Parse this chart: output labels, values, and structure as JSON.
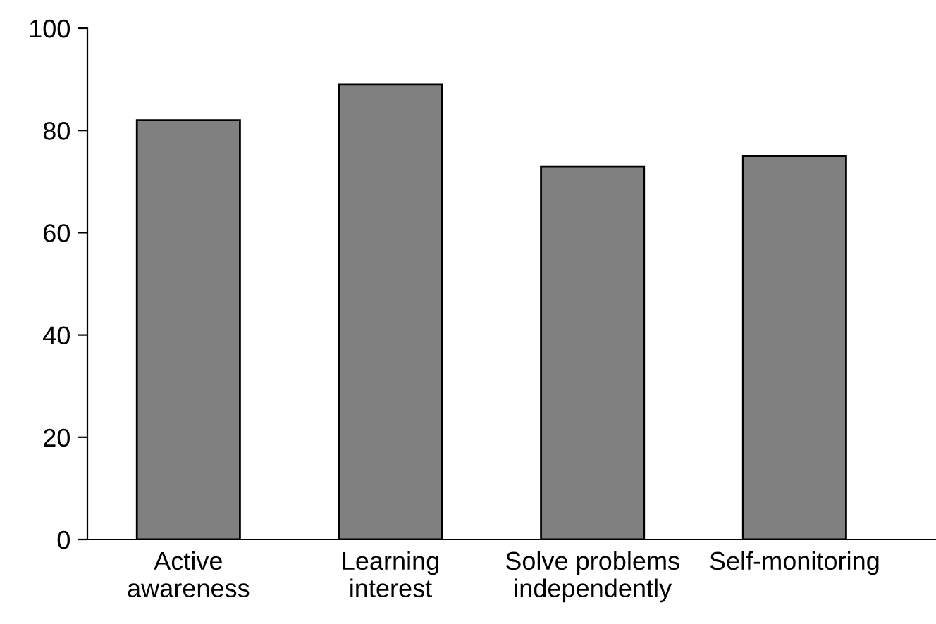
{
  "chart_data": {
    "type": "bar",
    "categories": [
      "Active\nawareness",
      "Learning\ninterest",
      "Solve problems\nindependently",
      "Self-monitoring"
    ],
    "values": [
      82,
      89,
      73,
      75
    ],
    "color": "#808080",
    "ylim": [
      0,
      100
    ],
    "yticks": [
      0,
      20,
      40,
      60,
      80,
      100
    ],
    "grid": false
  }
}
